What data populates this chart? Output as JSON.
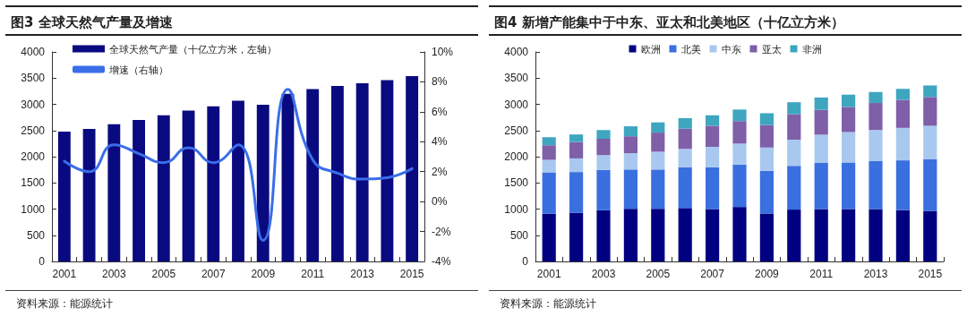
{
  "chart_data": [
    {
      "type": "bar",
      "title": "图3  全球天然气产量及增速",
      "categories": [
        "2001",
        null,
        "2003",
        null,
        "2005",
        null,
        "2007",
        null,
        "2009",
        null,
        "2011",
        null,
        "2013",
        null,
        "2015"
      ],
      "series": [
        {
          "name": "全球天然气产量（十亿立方米，左轴）",
          "type": "bar",
          "color": "#0a0a80",
          "values": [
            2480,
            2530,
            2620,
            2700,
            2790,
            2880,
            2960,
            3070,
            2990,
            3200,
            3290,
            3350,
            3400,
            3460,
            3540
          ]
        },
        {
          "name": "增速（右轴）",
          "type": "line",
          "axis": "y2",
          "color": "#3a6ee8",
          "values": [
            2.7,
            2.0,
            3.8,
            3.2,
            2.6,
            3.6,
            2.6,
            3.8,
            -2.6,
            7.5,
            2.8,
            1.9,
            1.5,
            1.6,
            2.2
          ]
        }
      ],
      "ylim": [
        0,
        4000
      ],
      "yticks": [
        0,
        500,
        1000,
        1500,
        2000,
        2500,
        3000,
        3500,
        4000
      ],
      "y2lim": [
        -4,
        10
      ],
      "y2ticks": [
        {
          "value": -4,
          "label": "-4%"
        },
        {
          "value": -2,
          "label": "-2%"
        },
        {
          "value": 0,
          "label": "0%"
        },
        {
          "value": 2,
          "label": "2%"
        },
        {
          "value": 4,
          "label": "4%"
        },
        {
          "value": 6,
          "label": "6%"
        },
        {
          "value": 8,
          "label": "8%"
        },
        {
          "value": 10,
          "label": "10%"
        }
      ],
      "legend": "top left",
      "grid": false,
      "marker": "none",
      "annotations": [
        "资料来源：能源统计"
      ]
    },
    {
      "type": "bar",
      "title": "图4  新增产能集中于中东、亚太和北美地区（十亿立方米）",
      "stacked": true,
      "categories": [
        "2001",
        null,
        "2003",
        null,
        "2005",
        null,
        "2007",
        null,
        "2009",
        null,
        "2011",
        null,
        "2013",
        null,
        "2015"
      ],
      "series": [
        {
          "name": "欧洲",
          "color": "#000080",
          "values": [
            910,
            930,
            980,
            1005,
            1005,
            1020,
            1000,
            1040,
            915,
            990,
            1000,
            1000,
            1000,
            980,
            965
          ]
        },
        {
          "name": "北美",
          "color": "#3a6fe0",
          "values": [
            790,
            777,
            770,
            750,
            750,
            780,
            800,
            810,
            815,
            835,
            880,
            890,
            915,
            950,
            990
          ]
        },
        {
          "name": "中东",
          "color": "#a8c8f0",
          "values": [
            240,
            260,
            280,
            310,
            340,
            350,
            390,
            400,
            445,
            500,
            540,
            580,
            595,
            620,
            635
          ]
        },
        {
          "name": "亚太",
          "color": "#7f5fa8",
          "values": [
            280,
            314,
            310,
            325,
            365,
            385,
            400,
            430,
            430,
            485,
            475,
            480,
            515,
            535,
            550
          ]
        },
        {
          "name": "非洲",
          "color": "#3fa6c0",
          "values": [
            150,
            143,
            170,
            190,
            195,
            200,
            200,
            220,
            225,
            230,
            235,
            235,
            210,
            210,
            220
          ]
        }
      ],
      "ylim": [
        0,
        4000
      ],
      "yticks": [
        0,
        500,
        1000,
        1500,
        2000,
        2500,
        3000,
        3500,
        4000
      ],
      "legend": "top",
      "grid": false,
      "annotations": [
        "资料来源：能源统计"
      ]
    }
  ]
}
